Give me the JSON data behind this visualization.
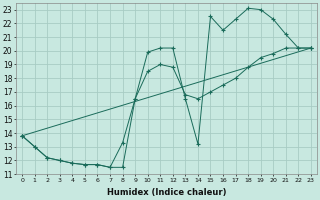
{
  "xlabel": "Humidex (Indice chaleur)",
  "background_color": "#c8e8e0",
  "grid_color": "#a8ccc4",
  "line_color": "#1a6b5a",
  "xlim": [
    -0.5,
    23.5
  ],
  "ylim": [
    11,
    23.5
  ],
  "xticks": [
    0,
    1,
    2,
    3,
    4,
    5,
    6,
    7,
    8,
    9,
    10,
    11,
    12,
    13,
    14,
    15,
    16,
    17,
    18,
    19,
    20,
    21,
    22,
    23
  ],
  "yticks": [
    11,
    12,
    13,
    14,
    15,
    16,
    17,
    18,
    19,
    20,
    21,
    22,
    23
  ],
  "line1_x": [
    0,
    1,
    2,
    3,
    4,
    5,
    6,
    7,
    8,
    9,
    10,
    11,
    12,
    13,
    14,
    15,
    16,
    17,
    18,
    19,
    20,
    21,
    22,
    23
  ],
  "line1_y": [
    13.8,
    13.0,
    12.2,
    12.0,
    11.8,
    11.7,
    11.7,
    11.5,
    11.5,
    16.5,
    19.9,
    20.2,
    20.2,
    16.5,
    13.2,
    22.5,
    21.5,
    22.3,
    23.1,
    23.0,
    22.3,
    21.2,
    20.2,
    20.2
  ],
  "line2_x": [
    0,
    1,
    2,
    3,
    4,
    5,
    6,
    7,
    8,
    9,
    10,
    11,
    12,
    13,
    14,
    15,
    16,
    17,
    18,
    19,
    20,
    21,
    22,
    23
  ],
  "line2_y": [
    13.8,
    13.0,
    12.2,
    12.0,
    11.8,
    11.7,
    11.7,
    11.5,
    13.3,
    16.5,
    18.5,
    19.0,
    18.8,
    16.8,
    16.5,
    17.0,
    17.5,
    18.0,
    18.8,
    19.5,
    19.8,
    20.2,
    20.2,
    20.2
  ],
  "line3_x": [
    0,
    23
  ],
  "line3_y": [
    13.8,
    20.2
  ]
}
